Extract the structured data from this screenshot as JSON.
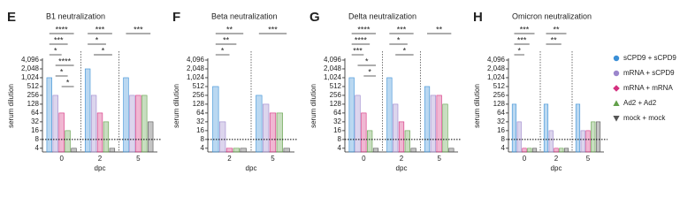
{
  "chart_data": [
    {
      "type": "bar",
      "panel_label": "E",
      "title": "B1 neutralization",
      "xlabel": "dpc",
      "ylabel": "serum dilution",
      "yscale": "log2",
      "ylim": [
        3,
        4096
      ],
      "limit_line": 8,
      "yticks": [
        4,
        8,
        16,
        32,
        64,
        128,
        256,
        512,
        {
          "value": 1024,
          "label": "1,024"
        },
        {
          "value": 2048,
          "label": "2,048"
        },
        {
          "value": 4096,
          "label": "4,096"
        }
      ],
      "categories": [
        "0",
        "2",
        "5"
      ],
      "series": [
        {
          "values": [
            1024,
            2048,
            1024
          ]
        },
        {
          "values": [
            256,
            256,
            256
          ]
        },
        {
          "values": [
            64,
            64,
            256
          ]
        },
        {
          "values": [
            16,
            32,
            256
          ]
        },
        {
          "values": [
            4,
            4,
            32
          ]
        }
      ],
      "annotations": [
        "****",
        "***",
        "*",
        "****",
        "*",
        "*",
        "***",
        "*",
        "*",
        "***"
      ]
    },
    {
      "type": "bar",
      "panel_label": "F",
      "title": "Beta neutralization",
      "xlabel": "dpc",
      "ylabel": "serum dilution",
      "yscale": "log2",
      "ylim": [
        3,
        4096
      ],
      "limit_line": 8,
      "yticks": [
        4,
        8,
        16,
        32,
        64,
        128,
        256,
        512,
        {
          "value": 1024,
          "label": "1,024"
        },
        {
          "value": 2048,
          "label": "2,048"
        },
        {
          "value": 4096,
          "label": "4,096"
        }
      ],
      "categories": [
        "2",
        "5"
      ],
      "series": [
        {
          "values": [
            512,
            256
          ]
        },
        {
          "values": [
            32,
            128
          ]
        },
        {
          "values": [
            4,
            64
          ]
        },
        {
          "values": [
            4,
            64
          ]
        },
        {
          "values": [
            4,
            4
          ]
        }
      ],
      "annotations": [
        "**",
        "**",
        "*",
        "***"
      ]
    },
    {
      "type": "bar",
      "panel_label": "G",
      "title": "Delta neutralization",
      "xlabel": "dpc",
      "ylabel": "serum dilution",
      "yscale": "log2",
      "ylim": [
        3,
        4096
      ],
      "limit_line": 8,
      "yticks": [
        4,
        8,
        16,
        32,
        64,
        128,
        256,
        512,
        {
          "value": 1024,
          "label": "1,024"
        },
        {
          "value": 2048,
          "label": "2,048"
        },
        {
          "value": 4096,
          "label": "4,096"
        }
      ],
      "categories": [
        "0",
        "2",
        "5"
      ],
      "series": [
        {
          "values": [
            1024,
            1024,
            512
          ]
        },
        {
          "values": [
            256,
            128,
            256
          ]
        },
        {
          "values": [
            64,
            32,
            256
          ]
        },
        {
          "values": [
            16,
            16,
            128
          ]
        },
        {
          "values": [
            4,
            4,
            4
          ]
        }
      ],
      "annotations": [
        "****",
        "****",
        "***",
        "*",
        "*",
        "***",
        "*",
        "*",
        "**"
      ]
    },
    {
      "type": "bar",
      "panel_label": "H",
      "title": "Omicron neutralization",
      "xlabel": "dpc",
      "ylabel": "serum dilution",
      "yscale": "log2",
      "ylim": [
        3,
        4096
      ],
      "limit_line": 8,
      "yticks": [
        4,
        8,
        16,
        32,
        64,
        128,
        256,
        512,
        {
          "value": 1024,
          "label": "1,024"
        },
        {
          "value": 2048,
          "label": "2,048"
        },
        {
          "value": 4096,
          "label": "4,096"
        }
      ],
      "categories": [
        "0",
        "2",
        "5"
      ],
      "series": [
        {
          "values": [
            128,
            128,
            128
          ]
        },
        {
          "values": [
            32,
            16,
            16
          ]
        },
        {
          "values": [
            4,
            4,
            16
          ]
        },
        {
          "values": [
            4,
            4,
            32
          ]
        },
        {
          "values": [
            4,
            4,
            32
          ]
        }
      ],
      "annotations": [
        "***",
        "***",
        "*",
        "**",
        "**"
      ]
    }
  ],
  "legend": [
    {
      "name": "sCPD9 + sCPD9",
      "color": "#3a8fd6",
      "marker": "circle"
    },
    {
      "name": "mRNA + sCPD9",
      "color": "#9b86cc",
      "marker": "circle"
    },
    {
      "name": "mRNA + mRNA",
      "color": "#d4307f",
      "marker": "diamond"
    },
    {
      "name": "Ad2 + Ad2",
      "color": "#62a04a",
      "marker": "triangle"
    },
    {
      "name": "mock + mock",
      "color": "#555555",
      "marker": "triangle-down"
    }
  ]
}
